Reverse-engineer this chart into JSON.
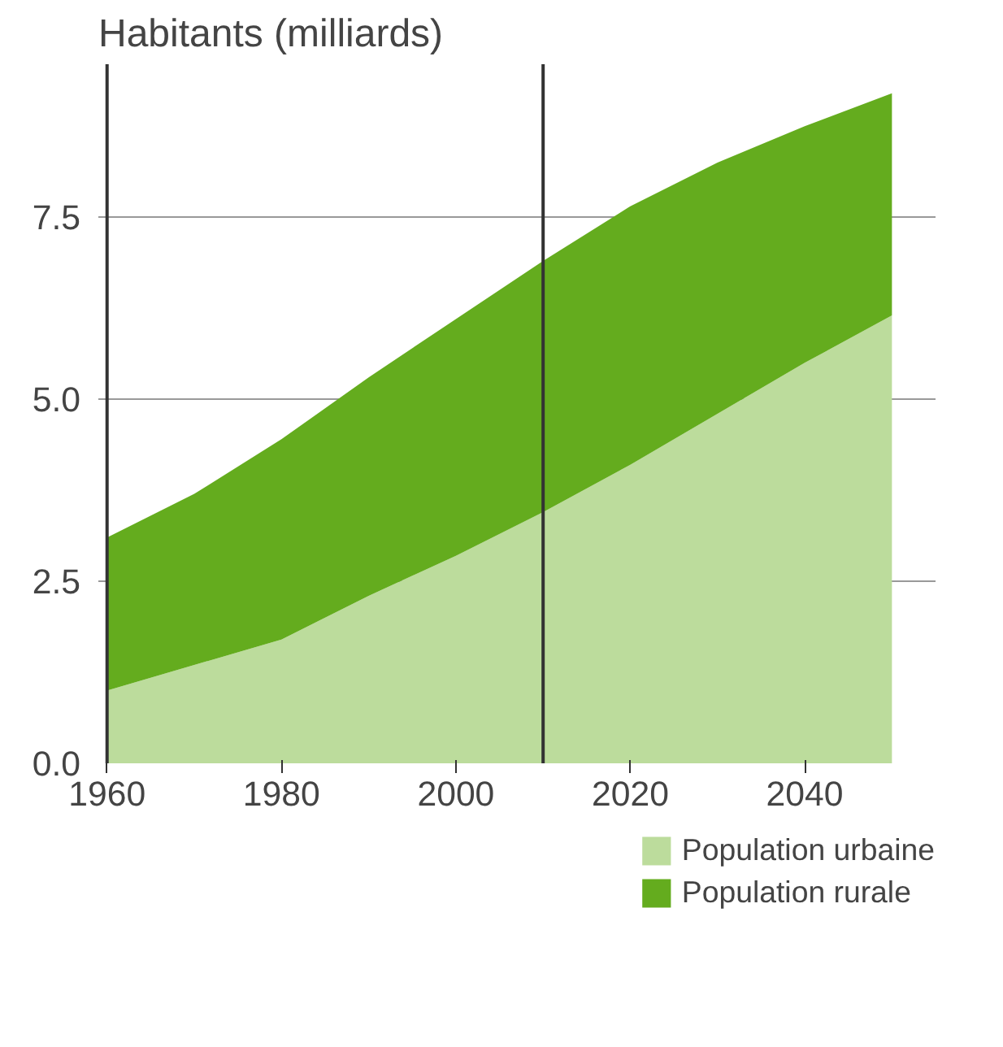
{
  "chart_data": {
    "type": "area",
    "stacked": true,
    "title": "Habitants (milliards)",
    "x": [
      1960,
      1970,
      1980,
      1990,
      2000,
      2010,
      2020,
      2030,
      2040,
      2050
    ],
    "series": [
      {
        "name": "Population urbaine",
        "color": "#bcdc9c",
        "values": [
          1.0,
          1.35,
          1.7,
          2.3,
          2.85,
          3.45,
          4.1,
          4.8,
          5.5,
          6.15
        ]
      },
      {
        "name": "Population rurale",
        "color": "#64ac1e",
        "values": [
          2.1,
          2.35,
          2.75,
          3.0,
          3.25,
          3.45,
          3.55,
          3.45,
          3.25,
          3.05
        ]
      }
    ],
    "xlim": [
      1959,
      2055
    ],
    "ylim": [
      0,
      9.6
    ],
    "xticks": [
      1960,
      1980,
      2000,
      2020,
      2040
    ],
    "yticks": [
      {
        "value": 0,
        "label": "0.0"
      },
      {
        "value": 2.5,
        "label": "2.5"
      },
      {
        "value": 5,
        "label": "5.0"
      },
      {
        "value": 7.5,
        "label": "7.5"
      }
    ],
    "ref_lines": [
      {
        "axis": "x",
        "value": 1960,
        "color": "#333333"
      },
      {
        "axis": "x",
        "value": 2010,
        "color": "#333333"
      }
    ],
    "grid": "y",
    "legend": "bottom right"
  }
}
